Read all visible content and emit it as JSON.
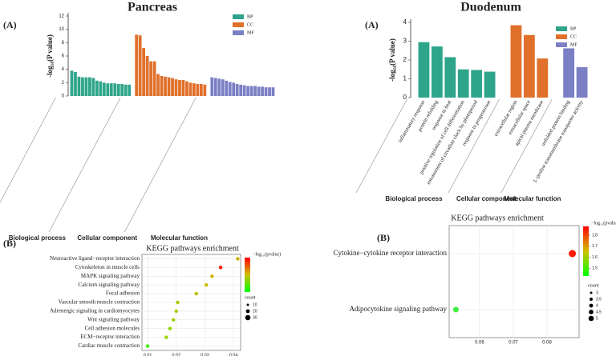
{
  "chart_data": [
    {
      "type": "bar",
      "title": "Pancreas",
      "panel": "(A)",
      "ylabel": "-log₁₀(P value)",
      "ylim": [
        0,
        12
      ],
      "yticks": [
        0,
        2,
        4,
        6,
        8,
        10,
        12
      ],
      "series": [
        {
          "name": "BP",
          "group": "Biological process",
          "color": "#2ea58a",
          "categories": [
            null,
            null,
            null,
            null,
            null,
            null,
            null,
            null,
            null,
            null,
            null,
            null,
            null,
            null,
            null,
            null,
            null
          ],
          "values": [
            3.8,
            3.6,
            2.9,
            2.8,
            2.8,
            2.8,
            2.7,
            2.3,
            2.2,
            2.0,
            1.9,
            1.9,
            1.9,
            1.8,
            1.8,
            1.7,
            1.7
          ]
        },
        {
          "name": "CC",
          "group": "Cellular component",
          "color": "#e0702a",
          "categories": [
            null,
            null,
            null,
            null,
            null,
            null,
            null,
            null,
            null,
            null,
            null,
            null,
            null,
            null,
            null,
            null,
            null,
            null,
            null,
            null
          ],
          "values": [
            9.2,
            9.1,
            7.2,
            6.0,
            5.2,
            5.2,
            3.3,
            3.0,
            2.9,
            2.8,
            2.7,
            2.5,
            2.4,
            2.4,
            2.2,
            2.0,
            1.9,
            1.8,
            1.8,
            1.7
          ]
        },
        {
          "name": "MF",
          "group": "Molecular function",
          "color": "#7b7fc4",
          "categories": [
            null,
            null,
            null,
            null,
            null,
            null,
            null,
            null,
            null,
            null,
            null,
            null,
            null,
            null,
            null,
            null,
            null,
            null
          ],
          "values": [
            2.8,
            2.7,
            2.6,
            2.5,
            2.3,
            2.1,
            2.0,
            1.8,
            1.7,
            1.6,
            1.5,
            1.5,
            1.5,
            1.4,
            1.4,
            1.3,
            1.3,
            1.3
          ]
        }
      ]
    },
    {
      "type": "bar",
      "title": "Duodenum",
      "panel": "(A)",
      "ylabel": "-log₁₀(P value)",
      "ylim": [
        0,
        4
      ],
      "yticks": [
        0,
        1,
        2,
        3,
        4
      ],
      "series": [
        {
          "name": "BP",
          "group": "Biological process",
          "color": "#2ea58a",
          "categories": [
            "inflammatory response",
            "protein refolding",
            "response to heat",
            "positive regulation of cell differentiation",
            "entrainment of circadian clock by photoperiod",
            "response to progesterone"
          ],
          "values": [
            2.95,
            2.72,
            2.15,
            1.5,
            1.47,
            1.38
          ]
        },
        {
          "name": "CC",
          "group": "Cellular component",
          "color": "#e0702a",
          "categories": [
            "extracellular region",
            "extracellular space",
            "apical plasma membrane"
          ],
          "values": [
            3.85,
            3.33,
            2.08
          ]
        },
        {
          "name": "MF",
          "group": "Molecular function",
          "color": "#7b7fc4",
          "categories": [
            "unfolded protein binding",
            "L-proline transmembrane transporter activity"
          ],
          "values": [
            2.62,
            1.62
          ]
        }
      ]
    },
    {
      "type": "dot",
      "title": "KEGG pathways enrichment",
      "panel": "(B)",
      "categories": [
        "Neuroactive ligand−receptor interaction",
        "Cytoskeleton in muscle cells",
        "MAPK signaling pathway",
        "Calcium signaling pathway",
        "Focal adhesion",
        "Vascular smooth muscle contraction",
        "Adrenergic signaling in cardiomyocytes",
        "Wnt signaling pathway",
        "Cell adhesion molecules",
        "ECM−receptor interaction",
        "Cardiac muscle contraction"
      ],
      "x": [
        0.0415,
        0.0355,
        0.0325,
        0.0305,
        0.027,
        0.0205,
        0.02,
        0.019,
        0.0178,
        0.0165,
        0.01
      ],
      "colors": [
        "#c8b400",
        "#ff1a00",
        "#c8b400",
        "#c8c000",
        "#b8c400",
        "#a8cc00",
        "#a8cc00",
        "#a0d000",
        "#90d400",
        "#a0d000",
        "#40f000"
      ],
      "xlim": [
        0.008,
        0.0425
      ],
      "xticks": [
        0.01,
        0.02,
        0.03,
        0.04
      ],
      "colorbar_label": "−log₁₀(pvalue)",
      "colorbar_colors": [
        "#ff0000",
        "#d0c000",
        "#00ff00"
      ],
      "size_label": "count",
      "size_ticks": [
        10,
        20,
        30
      ]
    },
    {
      "type": "dot",
      "title": "KEGG pathways enrichment",
      "panel": "(B)",
      "categories": [
        "Cytokine−cytokine receptor interaction",
        "Adipocytokine signaling pathway"
      ],
      "x": [
        0.0875,
        0.053
      ],
      "colors": [
        "#ff1a00",
        "#40f040"
      ],
      "xlim": [
        0.051,
        0.0895
      ],
      "xticks": [
        0.06,
        0.07,
        0.08
      ],
      "colorbar_label": "−log₁₀(pvalue)",
      "colorbar_colors": [
        "#ff0000",
        "#d0c000",
        "#00ff00"
      ],
      "colorbar_ticks": [
        1.5,
        1.6,
        1.7,
        1.8
      ],
      "colorbar_lim": [
        1.43,
        1.88
      ],
      "size_label": "count",
      "size_ticks": [
        3.0,
        3.5,
        4.0,
        4.5,
        5.0
      ]
    }
  ]
}
